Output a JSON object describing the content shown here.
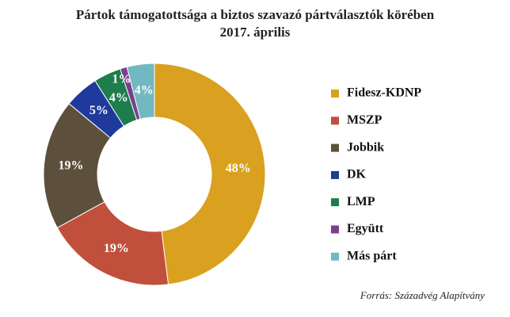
{
  "chart_data": {
    "type": "donut",
    "title": "Pártok támogatottsága a biztos szavazó pártválasztók körében",
    "subtitle": "2017. április",
    "categories": [
      "Fidesz-KDNP",
      "MSZP",
      "Jobbik",
      "DK",
      "LMP",
      "Együtt",
      "Más párt"
    ],
    "values": [
      48,
      19,
      19,
      5,
      4,
      1,
      4
    ],
    "value_labels": [
      "48%",
      "19%",
      "19%",
      "5%",
      "4%",
      "1%",
      "4%"
    ],
    "colors": [
      "#d9a11f",
      "#c0503c",
      "#5c4f3c",
      "#1f3a9c",
      "#1e7d4d",
      "#7a3f8e",
      "#72b8c2"
    ],
    "source": "Forrás: Századvég Alapítvány"
  }
}
